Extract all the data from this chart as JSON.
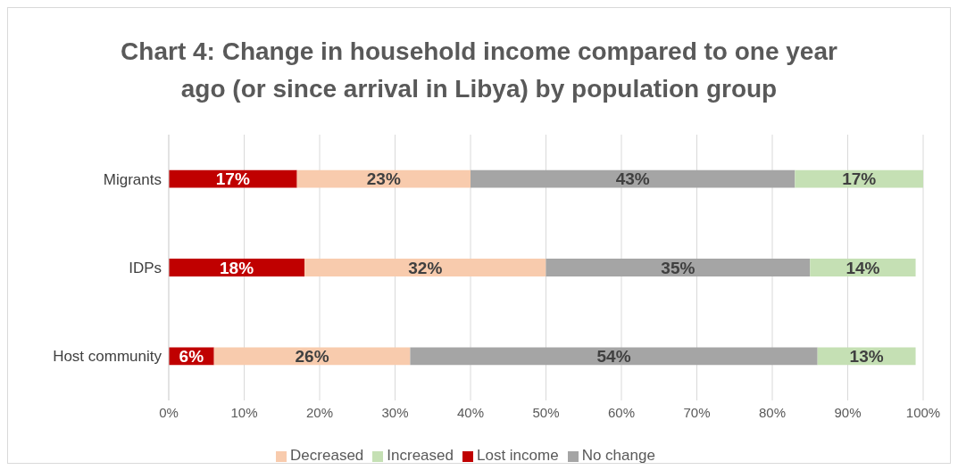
{
  "chart_data": {
    "type": "bar",
    "orientation": "horizontal",
    "stacked": true,
    "title": "Chart 4: Change in household income compared to one year ago (or since arrival in Libya) by population group",
    "categories": [
      "Migrants",
      "IDPs",
      "Host community"
    ],
    "series": [
      {
        "name": "Lost income",
        "color": "#c00000",
        "values": [
          17,
          18,
          6
        ],
        "value_labels": [
          "17%",
          "18%",
          "6%"
        ]
      },
      {
        "name": "Decreased",
        "color": "#f8cbad",
        "values": [
          23,
          32,
          26
        ],
        "value_labels": [
          "23%",
          "32%",
          "26%"
        ]
      },
      {
        "name": "No change",
        "color": "#a5a5a5",
        "values": [
          43,
          35,
          54
        ],
        "value_labels": [
          "43%",
          "35%",
          "54%"
        ]
      },
      {
        "name": "Increased",
        "color": "#c5e0b4",
        "values": [
          17,
          14,
          13
        ],
        "value_labels": [
          "17%",
          "14%",
          "13%"
        ]
      }
    ],
    "xlim": [
      0,
      100
    ],
    "xticks": [
      {
        "value": 0,
        "label": "0%"
      },
      {
        "value": 10,
        "label": "10%"
      },
      {
        "value": 20,
        "label": "20%"
      },
      {
        "value": 30,
        "label": "30%"
      },
      {
        "value": 40,
        "label": "40%"
      },
      {
        "value": 50,
        "label": "50%"
      },
      {
        "value": 60,
        "label": "60%"
      },
      {
        "value": 70,
        "label": "70%"
      },
      {
        "value": 80,
        "label": "80%"
      },
      {
        "value": 90,
        "label": "90%"
      },
      {
        "value": 100,
        "label": "100%"
      }
    ],
    "grid": "x",
    "legend": "bottom"
  }
}
